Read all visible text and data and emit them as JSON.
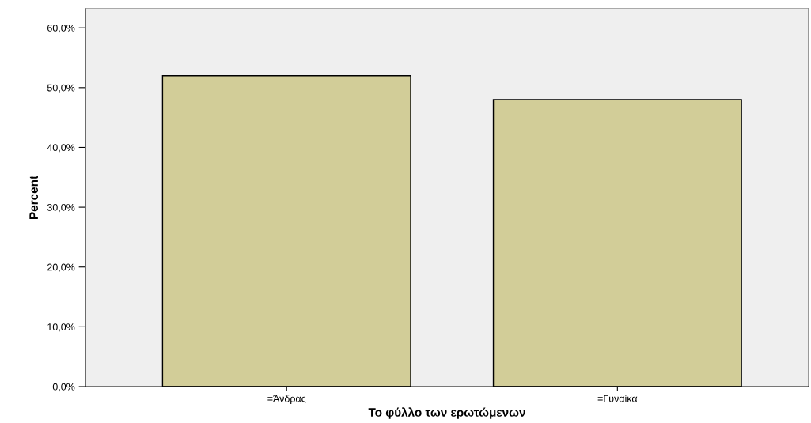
{
  "chart_data": {
    "type": "bar",
    "xlabel": "Το φύλλο των ερωτώμενων",
    "ylabel": "Percent",
    "categories": [
      "=Άνδρας",
      "=Γυναίκα"
    ],
    "values": [
      52.0,
      48.0
    ],
    "color": "#d2cd98",
    "ylim": [
      0,
      63.2
    ],
    "yticks": [
      {
        "value": 0,
        "label": "0,0%"
      },
      {
        "value": 10,
        "label": "10,0%"
      },
      {
        "value": 20,
        "label": "20,0%"
      },
      {
        "value": 30,
        "label": "30,0%"
      },
      {
        "value": 40,
        "label": "40,0%"
      },
      {
        "value": 50,
        "label": "50,0%"
      },
      {
        "value": 60,
        "label": "60,0%"
      }
    ],
    "grid": false,
    "legend": false
  }
}
